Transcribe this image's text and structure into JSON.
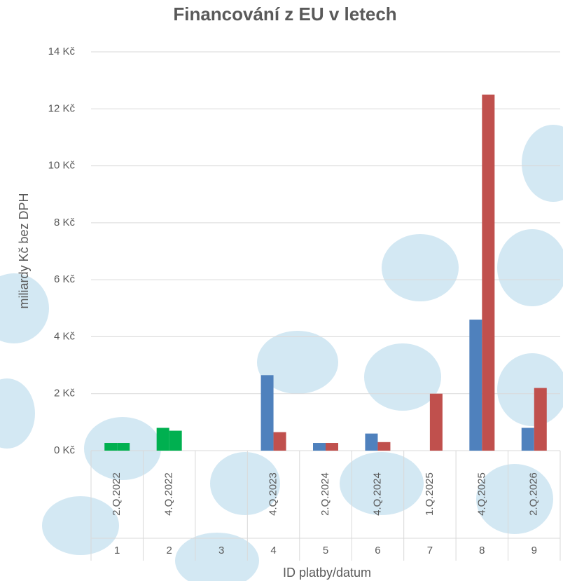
{
  "chart_data": {
    "type": "bar",
    "title": "Financování z EU v letech",
    "x_label": "ID platby/datum",
    "y_label": "miliardy Kč bez DPH",
    "categories": [
      "1",
      "2",
      "3",
      "4",
      "5",
      "6",
      "7",
      "8",
      "9"
    ],
    "sublabels": [
      "2.Q.2022",
      "4.Q.2022",
      null,
      "4.Q.2023",
      "2.Q.2024",
      "4.Q.2024",
      "1.Q.2025",
      "4.Q.2025",
      "2.Q.2026"
    ],
    "series": [
      {
        "color": "#4f81bd",
        "point_colors": [
          "#00b050",
          "#00b050",
          null,
          null,
          null,
          null,
          null,
          null,
          null
        ],
        "values": [
          0.27,
          0.8,
          null,
          2.65,
          0.27,
          0.6,
          null,
          4.6,
          0.8
        ]
      },
      {
        "color": "#c0504d",
        "point_colors": [
          "#00b050",
          "#00b050",
          null,
          null,
          null,
          null,
          null,
          null,
          null
        ],
        "values": [
          0.27,
          0.7,
          null,
          0.65,
          0.27,
          0.3,
          2.0,
          12.5,
          2.2
        ]
      }
    ],
    "ylim": [
      0,
      14
    ],
    "yticks": [
      {
        "value": 0,
        "label": "0 Kč"
      },
      {
        "value": 2,
        "label": "2 Kč"
      },
      {
        "value": 4,
        "label": "4 Kč"
      },
      {
        "value": 6,
        "label": "6 Kč"
      },
      {
        "value": 8,
        "label": "8 Kč"
      },
      {
        "value": 10,
        "label": "10 Kč"
      },
      {
        "value": 12,
        "label": "12 Kč"
      },
      {
        "value": 14,
        "label": "14 Kč"
      }
    ],
    "grid": true
  }
}
